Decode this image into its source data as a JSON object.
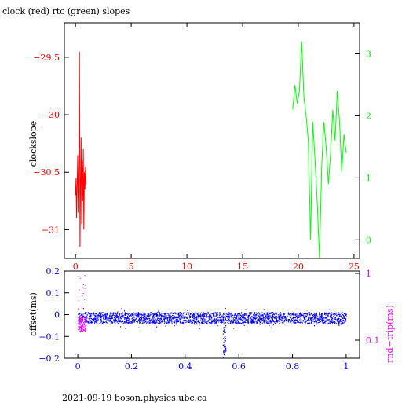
{
  "title": "clock (red) rtc (green) slopes",
  "footer": "2021-09-19 boson.physics.ubc.ca",
  "colors": {
    "red": "#ff0000",
    "green": "#00ff00",
    "blue": "#0000ff",
    "magenta": "#ff00ff",
    "black": "#000000"
  },
  "chart_data": [
    {
      "type": "line",
      "title": "clock (red) rtc (green) slopes",
      "ylabel": "clockslope",
      "xlim": [
        -1,
        25.5
      ],
      "ylim": [
        -31.25,
        -29.2
      ],
      "xticks": [
        0,
        5,
        10,
        15,
        20,
        25
      ],
      "yticks_left": [
        -29.5,
        -30,
        -30.5,
        -31
      ],
      "ylim_right": [
        -0.3,
        3.5
      ],
      "yticks_right": [
        0,
        1,
        2,
        3
      ],
      "grid": false,
      "series": [
        {
          "axis": "left",
          "color": "#ff0000",
          "x": [
            0.0,
            0.05,
            0.1,
            0.15,
            0.2,
            0.25,
            0.3,
            0.35,
            0.4,
            0.45,
            0.5,
            0.55,
            0.6,
            0.65,
            0.7,
            0.75,
            0.8,
            0.85,
            0.9,
            0.95
          ],
          "y": [
            -30.7,
            -30.55,
            -30.9,
            -30.6,
            -30.35,
            -30.85,
            -30.45,
            -29.45,
            -31.15,
            -30.6,
            -30.2,
            -30.95,
            -30.4,
            -30.75,
            -30.3,
            -31.0,
            -30.5,
            -30.65,
            -30.45,
            -30.6
          ]
        },
        {
          "axis": "right",
          "color": "#00ff00",
          "x": [
            19.5,
            19.7,
            19.9,
            20.1,
            20.3,
            20.5,
            20.7,
            20.9,
            21.1,
            21.3,
            21.5,
            21.7,
            21.9,
            22.1,
            22.3,
            22.5,
            22.7,
            22.9,
            23.1,
            23.3,
            23.5,
            23.7,
            23.9,
            24.1,
            24.3
          ],
          "y": [
            2.1,
            2.5,
            2.2,
            2.4,
            3.2,
            2.3,
            2.0,
            1.6,
            0.0,
            1.9,
            1.3,
            0.6,
            -0.3,
            1.2,
            1.9,
            1.5,
            0.9,
            1.4,
            2.1,
            1.6,
            2.4,
            1.9,
            1.1,
            1.7,
            1.4
          ]
        }
      ]
    },
    {
      "type": "scatter",
      "ylabel": "offset(ms)",
      "ylabel_right": "rnd−trip(ms)",
      "xlim": [
        -0.05,
        1.05
      ],
      "ylim": [
        -0.2,
        0.2
      ],
      "xticks": [
        0,
        0.2,
        0.4,
        0.6,
        0.8,
        1
      ],
      "yticks_left": [
        0.2,
        0.1,
        0,
        -0.1,
        -0.2
      ],
      "yticks_right": [
        1,
        0.1
      ],
      "right_scale": "log",
      "grid": false,
      "series": [
        {
          "name": "offset",
          "color": "#0000ff",
          "band_center": -0.015,
          "band_halfwidth": 0.025,
          "dip": {
            "x": 0.545,
            "min": -0.2
          }
        },
        {
          "name": "round-trip",
          "color": "#ff00ff",
          "x_range": [
            0.0,
            0.03
          ],
          "spike_max": 0.19
        }
      ]
    }
  ]
}
